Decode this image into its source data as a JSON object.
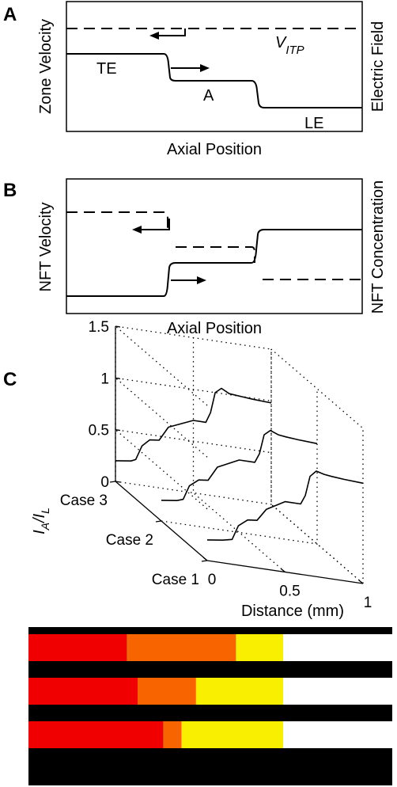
{
  "panels": {
    "A": {
      "label": "A",
      "ylabel_left": "Zone Velocity",
      "ylabel_right": "Electric Field",
      "xlabel": "Axial Position",
      "zone_labels": [
        "TE",
        "A",
        "LE"
      ],
      "vitp_main": "V",
      "vitp_sub": "ITP"
    },
    "B": {
      "label": "B",
      "ylabel_left": "NFT Velocity",
      "ylabel_right": "NFT Concentration",
      "xlabel": "Axial Position"
    },
    "C": {
      "label": "C",
      "zlabel_main": "I",
      "zlabel_sub1": "A",
      "zlabel_slash": "/I",
      "zlabel_sub2": "L",
      "xlabel": "Distance (mm)",
      "ztick_labels": [
        "0",
        "0.5",
        "1",
        "1.5"
      ],
      "xtick_labels": [
        "0",
        "0.5",
        "1"
      ],
      "case_labels": [
        "Case 3",
        "Case 2",
        "Case 1"
      ]
    }
  },
  "chart_data": [
    {
      "panel": "A",
      "type": "line",
      "title": "",
      "xlabel": "Axial Position",
      "ylabel": "Zone Velocity",
      "ylabel_right": "Electric Field",
      "series": [
        {
          "style": "solid",
          "x": [
            0,
            0.3,
            0.32,
            0.63,
            0.65,
            1.0
          ],
          "y": [
            0.63,
            0.63,
            0.43,
            0.43,
            0.19,
            0.19
          ]
        },
        {
          "style": "dashed",
          "x": [
            0,
            1
          ],
          "y": [
            0.84,
            0.84
          ]
        }
      ],
      "annotations": [
        "TE",
        "A",
        "LE",
        "VITP"
      ]
    },
    {
      "panel": "B",
      "type": "line",
      "title": "",
      "xlabel": "Axial Position",
      "ylabel": "NFT Velocity",
      "ylabel_right": "NFT Concentration",
      "series": [
        {
          "style": "solid",
          "x": [
            0,
            0.3,
            0.32,
            0.63,
            0.65,
            1.0
          ],
          "y": [
            0.19,
            0.19,
            0.4,
            0.4,
            0.73,
            0.73
          ]
        },
        {
          "style": "dashed",
          "x": [
            0,
            0.31,
            0.32,
            0.63,
            0.65,
            1.0
          ],
          "y": [
            0.77,
            0.77,
            0.53,
            0.53,
            0.29,
            0.29
          ]
        }
      ]
    },
    {
      "panel": "C",
      "type": "line",
      "title": "",
      "xlabel": "Distance (mm)",
      "zlabel": "IA/IL",
      "xlim": [
        0,
        1
      ],
      "zlim": [
        0,
        1.5
      ],
      "series": [
        {
          "name": "Case 1",
          "x": [
            0,
            0.1,
            0.16,
            0.2,
            0.26,
            0.32,
            0.38,
            0.5,
            0.6,
            0.63,
            0.66,
            0.7,
            0.75,
            0.8,
            0.88,
            1.0
          ],
          "y": [
            0.2,
            0.22,
            0.24,
            0.38,
            0.45,
            0.46,
            0.58,
            0.68,
            0.68,
            0.77,
            0.96,
            1.02,
            1.0,
            0.99,
            0.98,
            0.97
          ]
        },
        {
          "name": "Case 2",
          "x": [
            0,
            0.1,
            0.14,
            0.18,
            0.24,
            0.3,
            0.36,
            0.5,
            0.6,
            0.63,
            0.66,
            0.7,
            0.75,
            0.8,
            0.88,
            1.0
          ],
          "y": [
            0.2,
            0.22,
            0.24,
            0.38,
            0.45,
            0.46,
            0.6,
            0.7,
            0.7,
            0.79,
            0.98,
            1.03,
            1.0,
            0.99,
            0.98,
            0.97
          ]
        },
        {
          "name": "Case 3",
          "x": [
            0,
            0.1,
            0.13,
            0.17,
            0.22,
            0.28,
            0.34,
            0.5,
            0.58,
            0.61,
            0.64,
            0.68,
            0.73,
            0.8,
            0.88,
            1.0
          ],
          "y": [
            0.2,
            0.22,
            0.24,
            0.38,
            0.45,
            0.46,
            0.6,
            0.7,
            0.7,
            0.8,
            1.0,
            1.05,
            1.01,
            1.0,
            0.99,
            0.98
          ]
        }
      ]
    }
  ],
  "image_strips": {
    "colors": {
      "black": "#000000",
      "red": "#f00000",
      "orange": "#f86400",
      "yellow": "#f8f000",
      "white": "#ffffff"
    },
    "strips": [
      {
        "case": "Case 3",
        "zones": [
          {
            "color": "red",
            "end": 0.27
          },
          {
            "color": "orange",
            "end": 0.57
          },
          {
            "color": "yellow",
            "end": 0.7
          },
          {
            "color": "white",
            "end": 1.0
          }
        ]
      },
      {
        "case": "Case 2",
        "zones": [
          {
            "color": "red",
            "end": 0.3
          },
          {
            "color": "orange",
            "end": 0.46
          },
          {
            "color": "yellow",
            "end": 0.7
          },
          {
            "color": "white",
            "end": 1.0
          }
        ]
      },
      {
        "case": "Case 1",
        "zones": [
          {
            "color": "red",
            "end": 0.37
          },
          {
            "color": "orange",
            "end": 0.42
          },
          {
            "color": "yellow",
            "end": 0.7
          },
          {
            "color": "white",
            "end": 1.0
          }
        ]
      }
    ]
  }
}
